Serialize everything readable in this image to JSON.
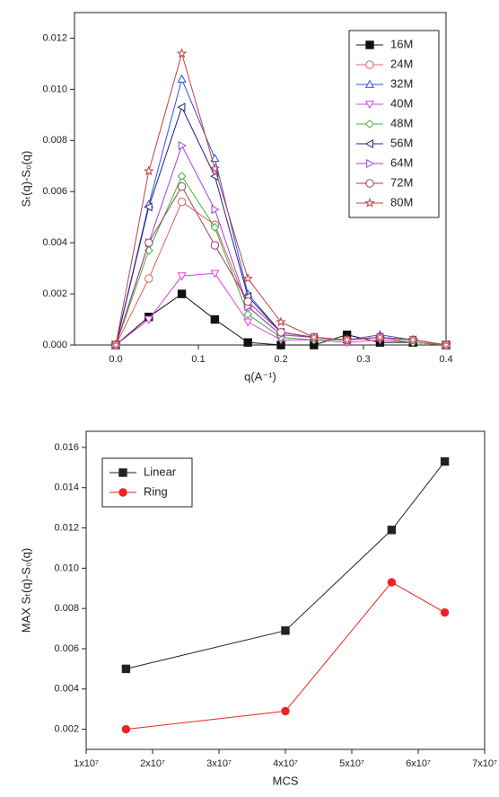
{
  "chart_data": [
    {
      "type": "line",
      "x_label": "q(A⁻¹)",
      "y_label": "Sₜ(q)-S₀(q)",
      "x": [
        0,
        0.04,
        0.08,
        0.12,
        0.16,
        0.2,
        0.24,
        0.28,
        0.32,
        0.36,
        0.4
      ],
      "xlim": [
        -0.05,
        0.4
      ],
      "xticks": [
        {
          "value": 0,
          "label": "0.0"
        },
        0.1,
        0.2,
        0.3,
        0.4
      ],
      "ylim": [
        0,
        0.013
      ],
      "yticks": [
        {
          "value": 0,
          "label": "0.000"
        },
        0.002,
        0.004,
        0.006,
        0.008,
        {
          "value": 0.01,
          "label": "0.010"
        },
        0.012
      ],
      "grid": false,
      "legend": "upper right",
      "series": [
        {
          "name": "16M",
          "color": "#111111",
          "marker": "square-filled",
          "values": [
            0,
            0.0011,
            0.002,
            0.001,
            0.0001,
            0,
            0,
            0.0004,
            0.0001,
            0.0001,
            0
          ]
        },
        {
          "name": "24M",
          "color": "#e06060",
          "marker": "circle",
          "values": [
            0,
            0.0026,
            0.0056,
            0.0047,
            0.0015,
            0.0004,
            0.0003,
            0.0002,
            0.0003,
            0.0002,
            0
          ]
        },
        {
          "name": "32M",
          "color": "#3050e0",
          "marker": "triangle-up",
          "values": [
            0,
            0.0055,
            0.0104,
            0.0073,
            0.002,
            0.0005,
            0.0003,
            0.0002,
            0.0004,
            0.0002,
            0
          ]
        },
        {
          "name": "40M",
          "color": "#e040e0",
          "marker": "triangle-down",
          "values": [
            0,
            0.001,
            0.0027,
            0.0028,
            0.0009,
            0.0002,
            0.0002,
            0.0001,
            0.0002,
            0.0001,
            0
          ]
        },
        {
          "name": "48M",
          "color": "#40b040",
          "marker": "diamond",
          "values": [
            0,
            0.0037,
            0.0066,
            0.0046,
            0.0012,
            0.0003,
            0.0002,
            0.0002,
            0.0003,
            0.0001,
            0
          ]
        },
        {
          "name": "56M",
          "color": "#202080",
          "marker": "triangle-left",
          "values": [
            0,
            0.0054,
            0.0093,
            0.0066,
            0.0019,
            0.0005,
            0.0003,
            0.0002,
            0.0003,
            0.0002,
            0
          ]
        },
        {
          "name": "64M",
          "color": "#a040e0",
          "marker": "triangle-right",
          "values": [
            0,
            0.004,
            0.0078,
            0.0053,
            0.0015,
            0.0004,
            0.0003,
            0.0002,
            0.0003,
            0.0002,
            0
          ]
        },
        {
          "name": "72M",
          "color": "#a04060",
          "marker": "circle",
          "values": [
            0,
            0.004,
            0.0062,
            0.0039,
            0.0017,
            0.0005,
            0.0003,
            0.0002,
            0.0003,
            0.0002,
            0
          ]
        },
        {
          "name": "80M",
          "color": "#c04040",
          "marker": "star",
          "values": [
            0,
            0.0068,
            0.0114,
            0.0069,
            0.0026,
            0.0009,
            0.0003,
            0.0002,
            0.0003,
            0.0002,
            0
          ]
        }
      ]
    },
    {
      "type": "line",
      "x_label": "MCS",
      "y_label": "MAX Sₜ(q)-S₀(q)",
      "x": [
        16000000,
        40000000,
        56000000,
        64000000
      ],
      "xlim": [
        10000000,
        70000000
      ],
      "xticks": [
        {
          "value": 10000000,
          "label": "1x10⁷"
        },
        {
          "value": 20000000,
          "label": "2x10⁷"
        },
        {
          "value": 30000000,
          "label": "3x10⁷"
        },
        {
          "value": 40000000,
          "label": "4x10⁷"
        },
        {
          "value": 50000000,
          "label": "5x10⁷"
        },
        {
          "value": 60000000,
          "label": "6x10⁷"
        },
        {
          "value": 70000000,
          "label": "7x10⁷"
        }
      ],
      "ylim": [
        0.001,
        0.0168
      ],
      "yticks": [
        0.002,
        0.004,
        0.006,
        0.008,
        {
          "value": 0.01,
          "label": "0.010"
        },
        0.012,
        0.014,
        0.016
      ],
      "grid": false,
      "legend": "upper left",
      "series": [
        {
          "name": "Linear",
          "color": "#222222",
          "marker": "square-filled",
          "values": [
            0.005,
            0.0069,
            0.0119,
            0.0153
          ]
        },
        {
          "name": "Ring",
          "color": "#ee2222",
          "marker": "circle-filled",
          "values": [
            0.002,
            0.0029,
            0.0093,
            0.0078
          ]
        }
      ]
    }
  ]
}
